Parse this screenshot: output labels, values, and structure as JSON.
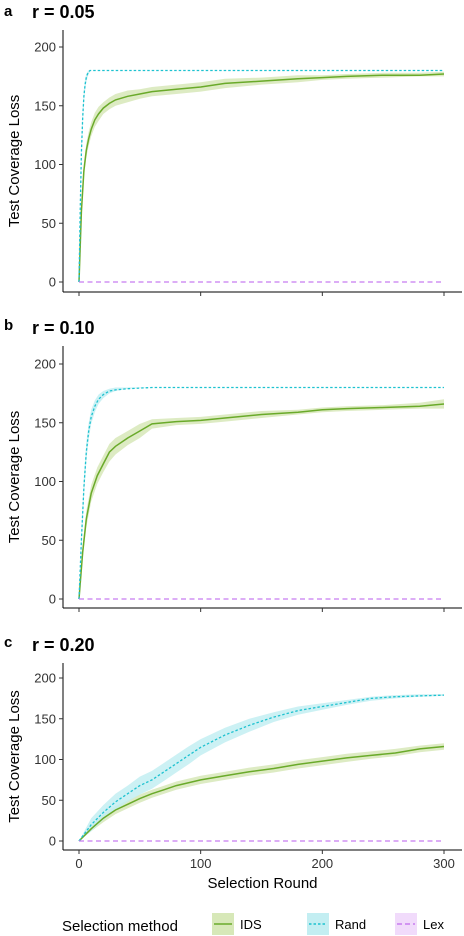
{
  "chart_data": [
    {
      "type": "line",
      "panel_label": "a",
      "title": "r = 0.05",
      "xlabel": "",
      "ylabel": "Test Coverage Loss",
      "xlim": [
        0,
        300
      ],
      "ylim": [
        0,
        210
      ],
      "x_ticks": [
        0,
        100,
        200,
        300
      ],
      "y_ticks": [
        0,
        50,
        100,
        150,
        200
      ],
      "grid": false,
      "series": [
        {
          "name": "IDS",
          "x": [
            0,
            2,
            4,
            6,
            8,
            10,
            13,
            16,
            20,
            25,
            30,
            40,
            50,
            60,
            80,
            100,
            120,
            150,
            180,
            200,
            220,
            250,
            280,
            300
          ],
          "y": [
            0,
            60,
            95,
            112,
            122,
            130,
            138,
            143,
            148,
            152,
            155,
            158,
            160,
            162,
            164,
            166,
            169,
            171,
            173,
            174,
            175,
            176,
            176,
            177
          ],
          "band_lower": [
            0,
            55,
            89,
            106,
            116,
            124,
            132,
            137,
            143,
            147,
            150,
            153,
            156,
            158,
            160,
            162,
            165,
            168,
            170,
            172,
            173,
            174,
            175,
            175
          ],
          "band_upper": [
            0,
            65,
            101,
            118,
            128,
            136,
            144,
            149,
            153,
            157,
            160,
            163,
            164,
            166,
            168,
            170,
            173,
            174,
            176,
            176,
            177,
            178,
            178,
            179
          ]
        },
        {
          "name": "Rand",
          "x": [
            0,
            1,
            2,
            3,
            4,
            5,
            6,
            7,
            8,
            9,
            10,
            12,
            15,
            300
          ],
          "y": [
            0,
            60,
            110,
            140,
            158,
            168,
            174,
            177,
            179,
            180,
            180,
            180,
            180,
            180
          ],
          "band_lower": [
            0,
            52,
            102,
            133,
            152,
            163,
            170,
            174,
            177,
            179,
            180,
            180,
            180,
            180
          ],
          "band_upper": [
            0,
            68,
            118,
            147,
            164,
            173,
            177,
            179,
            180,
            180,
            180,
            180,
            180,
            180
          ]
        },
        {
          "name": "Lex",
          "x": [
            0,
            300
          ],
          "y": [
            0,
            0
          ]
        }
      ]
    },
    {
      "type": "line",
      "panel_label": "b",
      "title": "r = 0.10",
      "xlabel": "",
      "ylabel": "Test Coverage Loss",
      "xlim": [
        0,
        300
      ],
      "ylim": [
        0,
        210
      ],
      "x_ticks": [
        0,
        100,
        200,
        300
      ],
      "y_ticks": [
        0,
        50,
        100,
        150,
        200
      ],
      "grid": false,
      "series": [
        {
          "name": "IDS",
          "x": [
            0,
            3,
            6,
            10,
            15,
            20,
            25,
            30,
            40,
            50,
            60,
            80,
            100,
            120,
            150,
            180,
            200,
            220,
            250,
            280,
            300
          ],
          "y": [
            0,
            40,
            68,
            90,
            105,
            115,
            125,
            130,
            137,
            143,
            149,
            151,
            152,
            154,
            157,
            159,
            161,
            162,
            163,
            164,
            166
          ],
          "band_lower": [
            0,
            34,
            61,
            83,
            98,
            108,
            117,
            123,
            131,
            137,
            145,
            148,
            149,
            151,
            154,
            157,
            159,
            160,
            161,
            162,
            162
          ],
          "band_upper": [
            0,
            46,
            75,
            97,
            112,
            122,
            132,
            137,
            143,
            149,
            153,
            154,
            155,
            157,
            160,
            161,
            163,
            164,
            165,
            167,
            170
          ]
        },
        {
          "name": "Rand",
          "x": [
            0,
            2,
            4,
            6,
            8,
            10,
            13,
            16,
            20,
            25,
            30,
            40,
            60,
            300
          ],
          "y": [
            0,
            50,
            95,
            125,
            143,
            155,
            164,
            170,
            174,
            177,
            178,
            179,
            180,
            180
          ],
          "band_lower": [
            0,
            42,
            86,
            117,
            136,
            149,
            159,
            166,
            171,
            175,
            177,
            179,
            180,
            180
          ],
          "band_upper": [
            0,
            58,
            104,
            133,
            150,
            161,
            169,
            174,
            177,
            179,
            180,
            180,
            180,
            180
          ]
        },
        {
          "name": "Lex",
          "x": [
            0,
            300
          ],
          "y": [
            0,
            0
          ]
        }
      ]
    },
    {
      "type": "line",
      "panel_label": "c",
      "title": "r = 0.20",
      "xlabel": "Selection Round",
      "ylabel": "Test Coverage Loss",
      "xlim": [
        0,
        300
      ],
      "ylim": [
        0,
        210
      ],
      "x_ticks": [
        0,
        100,
        200,
        300
      ],
      "y_ticks": [
        0,
        50,
        100,
        150,
        200
      ],
      "grid": false,
      "series": [
        {
          "name": "IDS",
          "x": [
            0,
            10,
            20,
            30,
            40,
            50,
            60,
            70,
            80,
            100,
            120,
            140,
            160,
            180,
            200,
            220,
            240,
            260,
            280,
            300
          ],
          "y": [
            0,
            15,
            28,
            38,
            45,
            52,
            58,
            63,
            68,
            75,
            80,
            85,
            89,
            94,
            98,
            102,
            105,
            108,
            113,
            116
          ],
          "band_lower": [
            0,
            12,
            23,
            33,
            40,
            47,
            53,
            58,
            63,
            70,
            75,
            80,
            84,
            89,
            93,
            97,
            101,
            104,
            109,
            112
          ],
          "band_upper": [
            0,
            18,
            33,
            43,
            50,
            57,
            63,
            68,
            73,
            80,
            85,
            90,
            94,
            99,
            103,
            107,
            110,
            113,
            117,
            120
          ]
        },
        {
          "name": "Rand",
          "x": [
            0,
            10,
            20,
            30,
            40,
            50,
            60,
            70,
            80,
            90,
            100,
            120,
            140,
            160,
            180,
            200,
            220,
            240,
            260,
            280,
            300
          ],
          "y": [
            0,
            20,
            35,
            48,
            58,
            68,
            75,
            85,
            95,
            105,
            115,
            130,
            142,
            152,
            160,
            165,
            170,
            175,
            177,
            178,
            179
          ],
          "band_lower": [
            0,
            12,
            26,
            38,
            48,
            57,
            64,
            74,
            84,
            94,
            105,
            121,
            134,
            146,
            155,
            161,
            167,
            172,
            175,
            177,
            178
          ],
          "band_upper": [
            0,
            28,
            44,
            58,
            68,
            79,
            86,
            96,
            106,
            116,
            125,
            139,
            150,
            158,
            165,
            169,
            173,
            177,
            179,
            180,
            180
          ]
        },
        {
          "name": "Lex",
          "x": [
            0,
            300
          ],
          "y": [
            0,
            0
          ]
        }
      ]
    }
  ],
  "legend": {
    "title": "Selection method",
    "placement": "bottom",
    "items": [
      {
        "name": "IDS",
        "color": "#6aaa2a",
        "fill": "#d7e8b8",
        "dash": "solid"
      },
      {
        "name": "Rand",
        "color": "#1ec2d0",
        "fill": "#c3eef2",
        "dash": "dotted"
      },
      {
        "name": "Lex",
        "color": "#c77cf0",
        "fill": "#f1dbfb",
        "dash": "dashed"
      }
    ]
  },
  "colors": {
    "IDS": "#6aaa2a",
    "IDS_band": "#d7e8b8",
    "Rand": "#1ec2d0",
    "Rand_band": "#c3eef2",
    "Lex": "#c77cf0"
  }
}
